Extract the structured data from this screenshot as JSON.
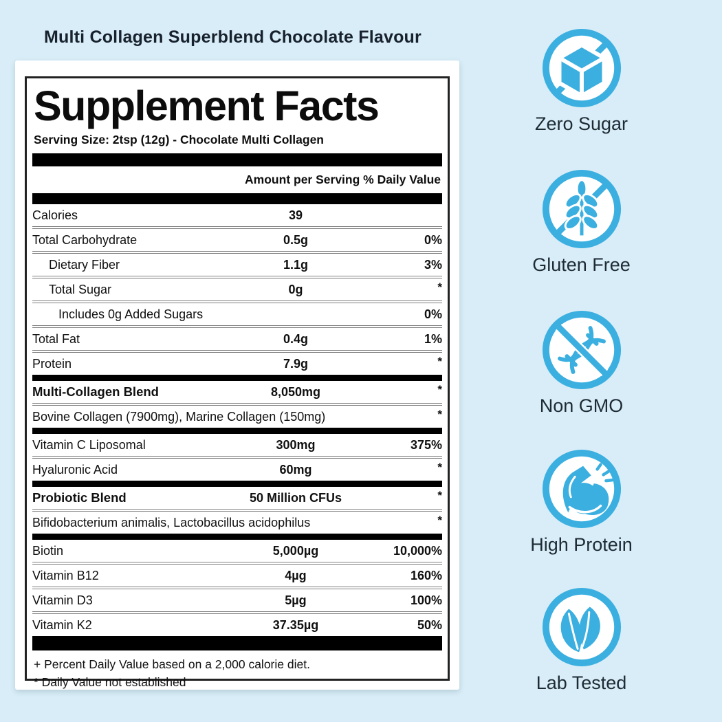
{
  "title": {
    "part1": "Multi Collagen",
    "part2": "Superblend Chocolate",
    "part3": "Flavour"
  },
  "label": {
    "heading": "Supplement Facts",
    "serving_line": "Serving Size: 2tsp (12g) - Chocolate Multi Collagen",
    "columns_header": "Amount per Serving % Daily Value",
    "rows": [
      {
        "type": "row",
        "name": "Calories",
        "amount": "39",
        "dv": "",
        "indent": 0,
        "bold": false
      },
      {
        "type": "row",
        "name": "Total Carbohydrate",
        "amount": "0.5g",
        "dv": "0%",
        "indent": 0,
        "bold": false
      },
      {
        "type": "row",
        "name": "Dietary Fiber",
        "amount": "1.1g",
        "dv": "3%",
        "indent": 1,
        "bold": false
      },
      {
        "type": "row",
        "name": "Total Sugar",
        "amount": "0g",
        "dv": "*",
        "indent": 1,
        "bold": false
      },
      {
        "type": "row",
        "name": "Includes 0g Added Sugars",
        "amount": "",
        "dv": "0%",
        "indent": 2,
        "bold": false
      },
      {
        "type": "row",
        "name": "Total Fat",
        "amount": "0.4g",
        "dv": "1%",
        "indent": 0,
        "bold": false
      },
      {
        "type": "row",
        "name": "Protein",
        "amount": "7.9g",
        "dv": "*",
        "indent": 0,
        "bold": false
      },
      {
        "type": "bar",
        "size": "thin"
      },
      {
        "type": "row",
        "name": "Multi-Collagen Blend",
        "amount": "8,050mg",
        "dv": "*",
        "indent": 0,
        "bold": true
      },
      {
        "type": "row",
        "name": "Bovine Collagen (7900mg), Marine Collagen (150mg)",
        "amount": "",
        "dv": "*",
        "indent": 0,
        "bold": false,
        "wide": true
      },
      {
        "type": "bar",
        "size": "thin"
      },
      {
        "type": "row",
        "name": "Vitamin C Liposomal",
        "amount": "300mg",
        "dv": "375%",
        "indent": 0,
        "bold": false
      },
      {
        "type": "row",
        "name": "Hyaluronic Acid",
        "amount": "60mg",
        "dv": "*",
        "indent": 0,
        "bold": false
      },
      {
        "type": "bar",
        "size": "thin"
      },
      {
        "type": "row",
        "name": "Probiotic Blend",
        "amount": "50 Million CFUs",
        "dv": "*",
        "indent": 0,
        "bold": true
      },
      {
        "type": "row",
        "name": "Bifidobacterium animalis, Lactobacillus acidophilus",
        "amount": "",
        "dv": "*",
        "indent": 0,
        "bold": false,
        "wide": true
      },
      {
        "type": "bar",
        "size": "thin"
      },
      {
        "type": "row",
        "name": "Biotin",
        "amount": "5,000µg",
        "dv": "10,000%",
        "indent": 0,
        "bold": false
      },
      {
        "type": "row",
        "name": "Vitamin B12",
        "amount": "4µg",
        "dv": "160%",
        "indent": 0,
        "bold": false
      },
      {
        "type": "row",
        "name": "Vitamin D3",
        "amount": "5µg",
        "dv": "100%",
        "indent": 0,
        "bold": false
      },
      {
        "type": "row",
        "name": "Vitamin K2",
        "amount": "37.35µg",
        "dv": "50%",
        "indent": 0,
        "bold": false
      },
      {
        "type": "bar",
        "size": "xl"
      }
    ],
    "footnotes": [
      "+ Percent Daily Value based on a 2,000 calorie diet.",
      "* Daily Value not established"
    ]
  },
  "badges": [
    {
      "label": "Zero Sugar",
      "icon": "no-sugar-cube-icon"
    },
    {
      "label": "Gluten Free",
      "icon": "no-wheat-icon"
    },
    {
      "label": "Non GMO",
      "icon": "no-dna-icon"
    },
    {
      "label": "High Protein",
      "icon": "bicep-icon"
    },
    {
      "label": "Lab Tested",
      "icon": "leaves-icon"
    }
  ],
  "colors": {
    "background": "#d8edf7",
    "accent_blue": "#3bafe0",
    "bar_black": "#000000",
    "text_dark": "#101010",
    "panel_white": "#ffffff"
  }
}
